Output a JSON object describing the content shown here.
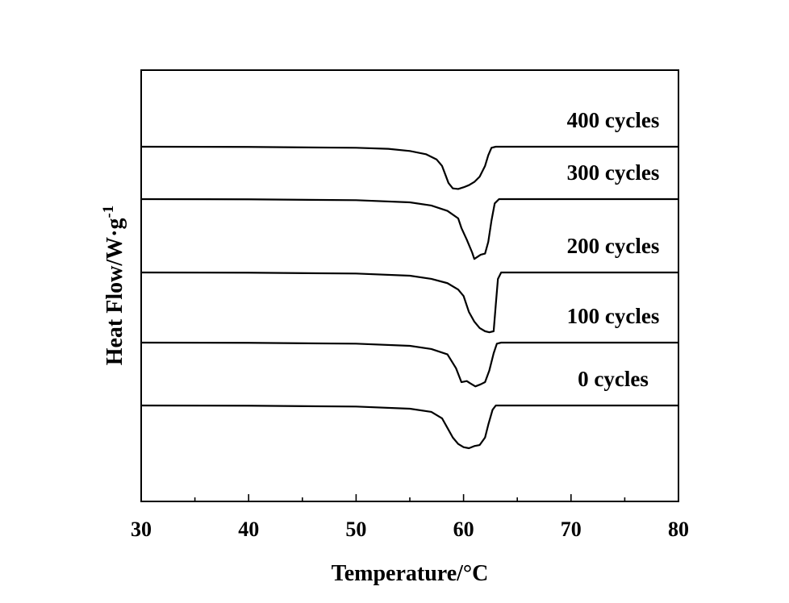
{
  "chart_data": {
    "type": "line",
    "title": "",
    "xlabel": "Temperature/°C",
    "ylabel": "Heat Flow/W·g",
    "ylabel_superscript": "-1",
    "xlim": [
      30,
      80
    ],
    "x_ticks": [
      30,
      40,
      50,
      60,
      70,
      80
    ],
    "x_tick_labels": [
      "30",
      "40",
      "50",
      "60",
      "70",
      "80"
    ],
    "y_ticks_shown": false,
    "grid": false,
    "legend": "inline-labels-right",
    "series": [
      {
        "name": "400 cycles",
        "x": [
          30,
          40,
          50,
          53,
          55,
          56.5,
          57.5,
          58,
          58.3,
          58.6,
          59,
          59.5,
          60,
          60.5,
          61,
          61.5,
          62,
          62.3,
          62.6,
          63,
          64,
          70,
          80
        ],
        "y": [
          0.0,
          -0.01,
          -0.05,
          -0.1,
          -0.2,
          -0.35,
          -0.6,
          -0.9,
          -1.3,
          -1.7,
          -1.95,
          -1.98,
          -1.9,
          -1.8,
          -1.65,
          -1.4,
          -0.9,
          -0.4,
          -0.05,
          0.0,
          0.0,
          0.0,
          0.0
        ]
      },
      {
        "name": "300 cycles",
        "x": [
          30,
          40,
          50,
          55,
          57,
          58.5,
          59.5,
          59.8,
          60.3,
          60.8,
          61,
          61.3,
          61.6,
          62,
          62.3,
          62.6,
          62.9,
          63.3,
          64,
          70,
          80
        ],
        "y": [
          0.0,
          -0.01,
          -0.05,
          -0.15,
          -0.3,
          -0.55,
          -0.9,
          -1.35,
          -1.9,
          -2.5,
          -2.8,
          -2.7,
          -2.6,
          -2.55,
          -2.0,
          -1.0,
          -0.2,
          0.0,
          0.0,
          0.0,
          0.0
        ]
      },
      {
        "name": "200 cycles",
        "x": [
          30,
          40,
          50,
          55,
          57,
          58.5,
          59.5,
          60,
          60.5,
          61,
          61.5,
          62,
          62.4,
          62.8,
          63,
          63.2,
          63.5,
          64,
          70,
          80
        ],
        "y": [
          0.0,
          -0.01,
          -0.05,
          -0.15,
          -0.3,
          -0.5,
          -0.8,
          -1.1,
          -1.85,
          -2.3,
          -2.6,
          -2.75,
          -2.8,
          -2.75,
          -1.5,
          -0.3,
          0.0,
          0.0,
          0.0,
          0.0
        ]
      },
      {
        "name": "100 cycles",
        "x": [
          30,
          40,
          50,
          55,
          57,
          58.5,
          59.3,
          59.8,
          60.3,
          60.6,
          61.1,
          61.6,
          62,
          62.4,
          62.8,
          63.1,
          63.5,
          64,
          70,
          80
        ],
        "y": [
          0.0,
          -0.01,
          -0.05,
          -0.15,
          -0.3,
          -0.55,
          -1.2,
          -1.85,
          -1.8,
          -1.9,
          -2.05,
          -1.95,
          -1.85,
          -1.3,
          -0.5,
          -0.05,
          0.0,
          0.0,
          0.0,
          0.0
        ]
      },
      {
        "name": "0 cycles",
        "x": [
          30,
          40,
          50,
          55,
          57,
          58,
          58.5,
          59,
          59.5,
          60,
          60.5,
          61,
          61.5,
          62,
          62.3,
          62.7,
          63,
          64,
          70,
          80
        ],
        "y": [
          0.0,
          -0.01,
          -0.05,
          -0.15,
          -0.3,
          -0.6,
          -1.05,
          -1.5,
          -1.8,
          -1.95,
          -2.0,
          -1.9,
          -1.85,
          -1.5,
          -0.9,
          -0.2,
          0.0,
          0.0,
          0.0,
          0.0
        ]
      }
    ]
  }
}
